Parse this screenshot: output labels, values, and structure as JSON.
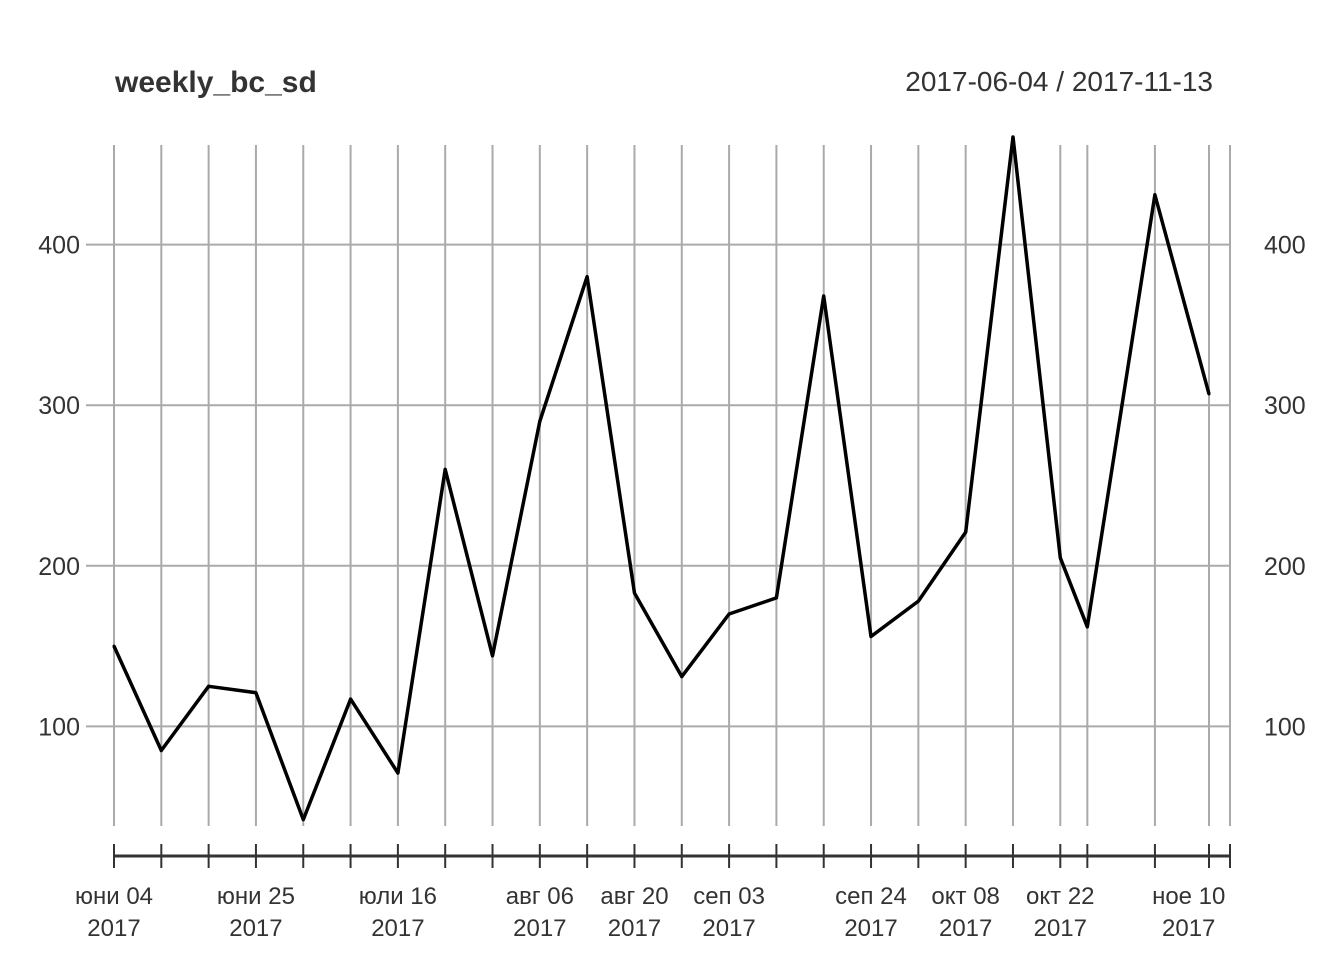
{
  "header": {
    "title": "weekly_bc_sd",
    "date_range": "2017-06-04 / 2017-11-13"
  },
  "chart_data": {
    "type": "line",
    "title": "weekly_bc_sd",
    "subtitle": "2017-06-04 / 2017-11-13",
    "xlabel": "",
    "ylabel": "",
    "x": [
      "2017-06-04",
      "2017-06-11",
      "2017-06-18",
      "2017-06-25",
      "2017-07-02",
      "2017-07-09",
      "2017-07-16",
      "2017-07-23",
      "2017-07-30",
      "2017-08-06",
      "2017-08-13",
      "2017-08-20",
      "2017-08-27",
      "2017-09-03",
      "2017-09-10",
      "2017-09-17",
      "2017-09-24",
      "2017-10-01",
      "2017-10-08",
      "2017-10-15",
      "2017-10-22",
      "2017-10-26",
      "2017-11-05",
      "2017-11-13"
    ],
    "values": [
      150,
      85,
      125,
      121,
      42,
      117,
      71,
      260,
      144,
      290,
      380,
      183,
      131,
      170,
      180,
      368,
      156,
      178,
      221,
      467,
      205,
      162,
      431,
      307
    ],
    "ylim": [
      38,
      462
    ],
    "yticks": [
      100,
      200,
      300,
      400
    ],
    "xticks": [
      {
        "date": "2017-06-04",
        "label": "юни 04",
        "year": "2017"
      },
      {
        "date": "2017-06-25",
        "label": "юни 25",
        "year": "2017"
      },
      {
        "date": "2017-07-16",
        "label": "юли 16",
        "year": "2017"
      },
      {
        "date": "2017-08-06",
        "label": "авг 06",
        "year": "2017"
      },
      {
        "date": "2017-08-20",
        "label": "авг 20",
        "year": "2017"
      },
      {
        "date": "2017-09-03",
        "label": "сеп 03",
        "year": "2017"
      },
      {
        "date": "2017-09-24",
        "label": "сеп 24",
        "year": "2017"
      },
      {
        "date": "2017-10-08",
        "label": "окт 08",
        "year": "2017"
      },
      {
        "date": "2017-10-22",
        "label": "окт 22",
        "year": "2017"
      },
      {
        "date": "2017-11-10",
        "label": "ное 10",
        "year": "2017"
      }
    ],
    "grid": true,
    "line_color": "#000000",
    "grid_color": "#aaaaaa"
  }
}
